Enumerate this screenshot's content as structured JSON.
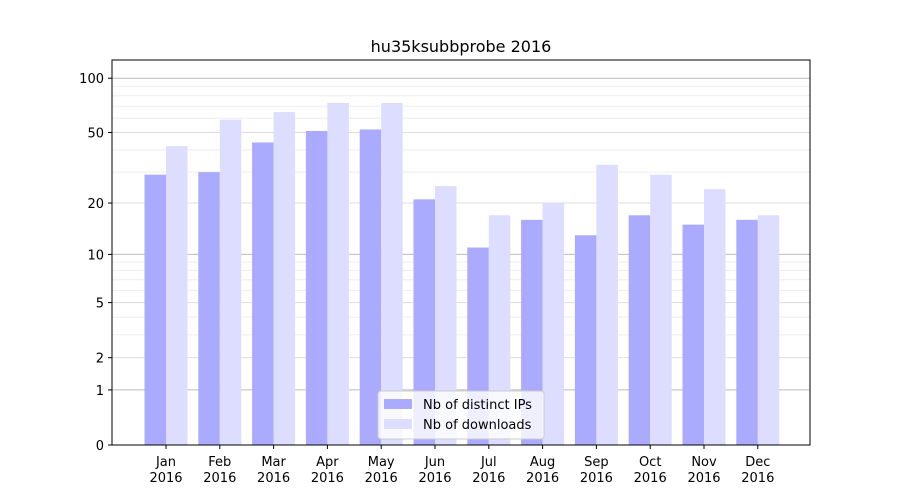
{
  "chart_data": {
    "type": "bar",
    "title": "hu35ksubbprobe 2016",
    "xlabel": "",
    "ylabel": "",
    "yscale": "log(1+y)",
    "ylim": [
      0,
      120
    ],
    "yticks": [
      0,
      1,
      2,
      5,
      10,
      20,
      50,
      100
    ],
    "ytick_labels": [
      "0",
      "1",
      "2",
      "5",
      "10",
      "20",
      "50",
      "100"
    ],
    "grid": true,
    "legend_position": "bottom-center",
    "categories": [
      "Jan\n2016",
      "Feb\n2016",
      "Mar\n2016",
      "Apr\n2016",
      "May\n2016",
      "Jun\n2016",
      "Jul\n2016",
      "Aug\n2016",
      "Sep\n2016",
      "Oct\n2016",
      "Nov\n2016",
      "Dec\n2016"
    ],
    "series": [
      {
        "name": "Nb of distinct IPs",
        "color": "#aaaaff",
        "values": [
          29,
          30,
          44,
          51,
          52,
          21,
          11,
          16,
          13,
          17,
          15,
          16
        ]
      },
      {
        "name": "Nb of downloads",
        "color": "#ddddff",
        "values": [
          42,
          59,
          65,
          73,
          73,
          25,
          17,
          20,
          33,
          29,
          24,
          17
        ]
      }
    ]
  }
}
